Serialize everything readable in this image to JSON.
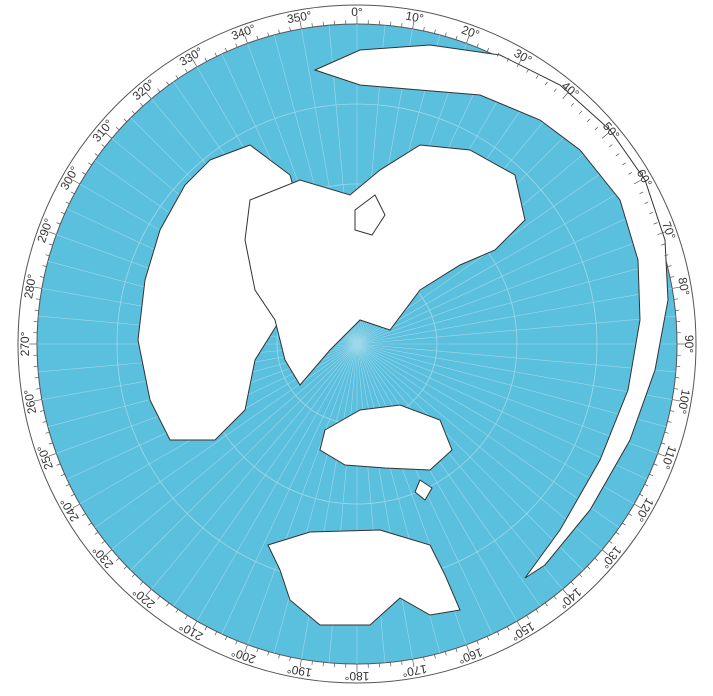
{
  "bearings": [
    "0°",
    "10°",
    "20°",
    "30°",
    "40°",
    "50°",
    "60°",
    "70°",
    "80°",
    "90°",
    "100°",
    "110°",
    "120°",
    "130°",
    "140°",
    "150°",
    "160°",
    "170°",
    "180°",
    "190°",
    "200°",
    "210°",
    "220°",
    "230°",
    "240°",
    "250°",
    "260°",
    "270°",
    "280°",
    "290°",
    "300°",
    "310°",
    "320°",
    "330°",
    "340°",
    "350°"
  ]
}
